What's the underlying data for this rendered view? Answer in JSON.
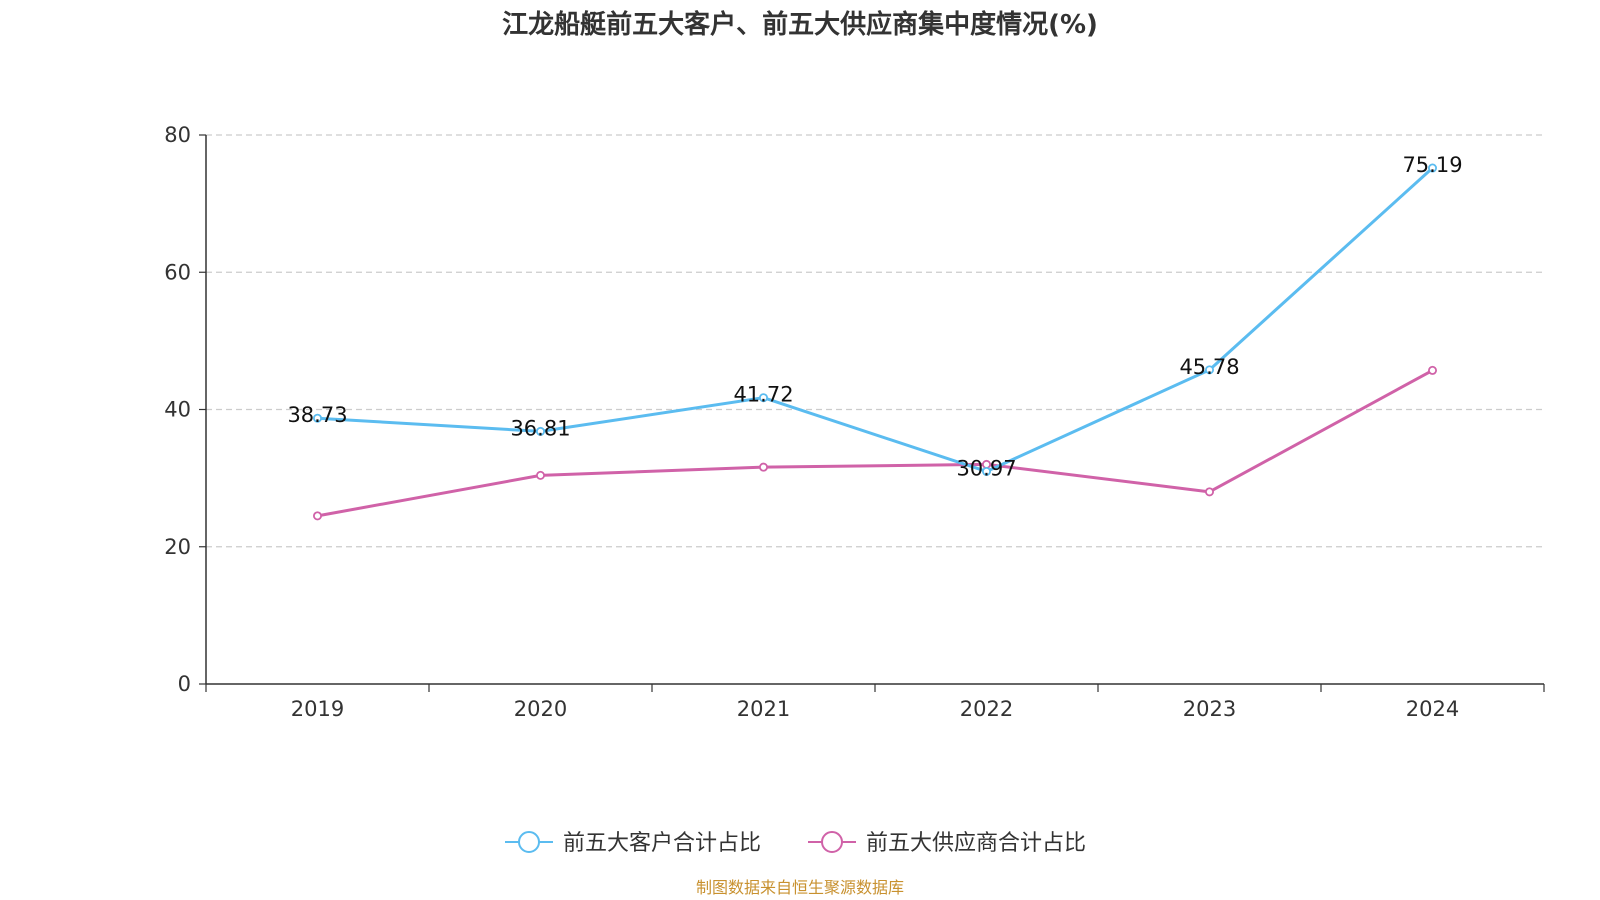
{
  "chart_data": {
    "type": "line",
    "title": "江龙船艇前五大客户、前五大供应商集中度情况(%)",
    "categories": [
      "2019",
      "2020",
      "2021",
      "2022",
      "2023",
      "2024"
    ],
    "ylim": [
      0,
      80
    ],
    "yticks": [
      0,
      20,
      40,
      60,
      80
    ],
    "ytick_labels": [
      "0",
      "20",
      "40",
      "60",
      "80"
    ],
    "grid": true,
    "legend_position": "bottom-center",
    "series": [
      {
        "name": "前五大客户合计占比",
        "color": "#5bbcf0",
        "values": [
          38.73,
          36.81,
          41.72,
          30.97,
          45.78,
          75.19
        ],
        "data_labels": [
          "38.73",
          "36.81",
          "41.72",
          "30.97",
          "45.78",
          "75.19"
        ]
      },
      {
        "name": "前五大供应商合计占比",
        "color": "#d062a8",
        "values": [
          24.5,
          30.4,
          31.6,
          32.0,
          28.0,
          45.7
        ]
      }
    ],
    "source": "制图数据来自恒生聚源数据库"
  }
}
